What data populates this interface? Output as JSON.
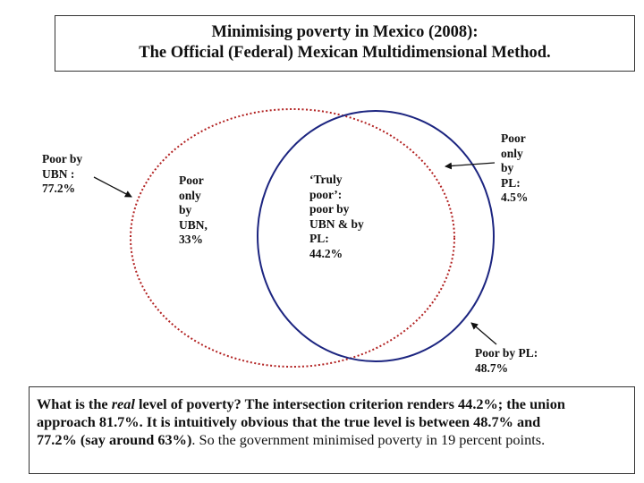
{
  "title": {
    "line1": "Minimising poverty in Mexico (2008):",
    "line2": "The Official (Federal) Mexican Multidimensional Method."
  },
  "labels": {
    "poor_by_ubn": [
      "Poor by",
      "UBN :",
      "77.2%"
    ],
    "poor_only_ubn": [
      "Poor",
      "only",
      "by",
      "UBN,",
      "33%"
    ],
    "truly_poor": [
      "‘Truly",
      "poor’:",
      "poor by",
      "UBN & by",
      "PL:",
      "44.2%"
    ],
    "poor_only_pl": [
      "Poor",
      "only",
      "by",
      "PL:",
      "4.5%"
    ],
    "poor_by_pl": [
      "Poor by PL:",
      "48.7%"
    ]
  },
  "conclusion": {
    "part1": "What is the ",
    "real": "real",
    "part2": " level of poverty? The intersection criterion renders 44.2%; the union",
    "line2": "approach 81.7%. It is intuitively obvious that the true level is between 48.7% and",
    "line3a": "77.2% (say around 63%)",
    "line3b": ". So the government minimised poverty in 19 percent points."
  },
  "colors": {
    "ubn_circle": "#b22222",
    "pl_circle": "#1c2580",
    "border": "#333333"
  }
}
